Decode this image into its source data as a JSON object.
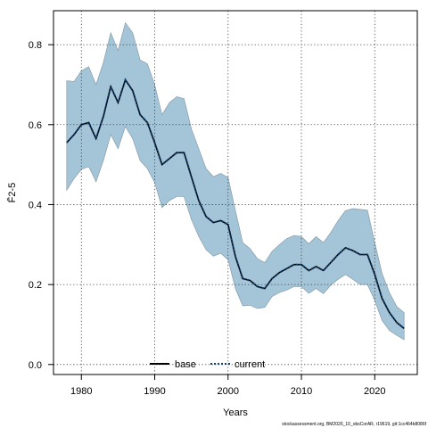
{
  "chart_data": {
    "type": "line",
    "xlabel": "Years",
    "ylabel": "F̄2-5",
    "xlim": [
      1976.2,
      2025.8
    ],
    "ylim": [
      -0.025,
      0.885
    ],
    "x_ticks": [
      1980,
      1990,
      2000,
      2010,
      2020
    ],
    "y_ticks": [
      0.0,
      0.2,
      0.4,
      0.6,
      0.8
    ],
    "y_tick_labels": [
      "0.0",
      "0.2",
      "0.4",
      "0.6",
      "0.8"
    ],
    "grid": true,
    "legend_position": "bottom",
    "colors": {
      "band": "#a4c4d7",
      "base": "#000000",
      "current": "#0d3f70"
    },
    "x": [
      1978,
      1979,
      1980,
      1981,
      1982,
      1983,
      1984,
      1985,
      1986,
      1987,
      1988,
      1989,
      1990,
      1991,
      1992,
      1993,
      1994,
      1995,
      1996,
      1997,
      1998,
      1999,
      2000,
      2001,
      2002,
      2003,
      2004,
      2005,
      2006,
      2007,
      2008,
      2009,
      2010,
      2011,
      2012,
      2013,
      2014,
      2015,
      2016,
      2017,
      2018,
      2019,
      2020,
      2021,
      2022,
      2023,
      2024
    ],
    "series": [
      {
        "name": "base",
        "style": "solid",
        "values": [
          0.555,
          0.575,
          0.6,
          0.605,
          0.565,
          0.62,
          0.695,
          0.655,
          0.712,
          0.685,
          0.625,
          0.605,
          0.555,
          0.5,
          0.515,
          0.53,
          0.53,
          0.47,
          0.41,
          0.37,
          0.355,
          0.36,
          0.35,
          0.27,
          0.215,
          0.21,
          0.195,
          0.19,
          0.215,
          0.23,
          0.24,
          0.25,
          0.25,
          0.235,
          0.245,
          0.235,
          0.255,
          0.275,
          0.292,
          0.285,
          0.275,
          0.275,
          0.225,
          0.165,
          0.13,
          0.105,
          0.09
        ]
      },
      {
        "name": "current",
        "style": "dotted",
        "values": [
          0.555,
          0.575,
          0.6,
          0.605,
          0.565,
          0.62,
          0.695,
          0.655,
          0.712,
          0.685,
          0.625,
          0.605,
          0.555,
          0.5,
          0.515,
          0.53,
          0.53,
          0.47,
          0.41,
          0.37,
          0.355,
          0.36,
          0.35,
          0.27,
          0.215,
          0.21,
          0.195,
          0.19,
          0.215,
          0.23,
          0.24,
          0.25,
          0.25,
          0.235,
          0.245,
          0.235,
          0.255,
          0.275,
          0.292,
          0.285,
          0.275,
          0.275,
          0.225,
          0.165,
          0.13,
          0.105,
          0.09
        ]
      }
    ],
    "band": {
      "upper": [
        0.71,
        0.708,
        0.735,
        0.745,
        0.7,
        0.755,
        0.83,
        0.785,
        0.855,
        0.83,
        0.762,
        0.752,
        0.7,
        0.625,
        0.655,
        0.67,
        0.665,
        0.59,
        0.54,
        0.49,
        0.47,
        0.478,
        0.468,
        0.385,
        0.305,
        0.29,
        0.265,
        0.255,
        0.283,
        0.3,
        0.315,
        0.323,
        0.32,
        0.302,
        0.32,
        0.305,
        0.33,
        0.36,
        0.385,
        0.39,
        0.388,
        0.386,
        0.305,
        0.228,
        0.18,
        0.145,
        0.13
      ],
      "lower": [
        0.436,
        0.465,
        0.488,
        0.495,
        0.457,
        0.51,
        0.575,
        0.54,
        0.595,
        0.565,
        0.51,
        0.49,
        0.455,
        0.392,
        0.41,
        0.42,
        0.42,
        0.363,
        0.32,
        0.287,
        0.271,
        0.278,
        0.262,
        0.19,
        0.147,
        0.148,
        0.14,
        0.143,
        0.17,
        0.18,
        0.186,
        0.195,
        0.195,
        0.178,
        0.19,
        0.177,
        0.198,
        0.213,
        0.225,
        0.213,
        0.2,
        0.2,
        0.16,
        0.11,
        0.085,
        0.073,
        0.062
      ]
    },
    "footer": "stockassessment.org, BM2026_10_obsCorAR, r19619, git:1cc464b8086f"
  }
}
